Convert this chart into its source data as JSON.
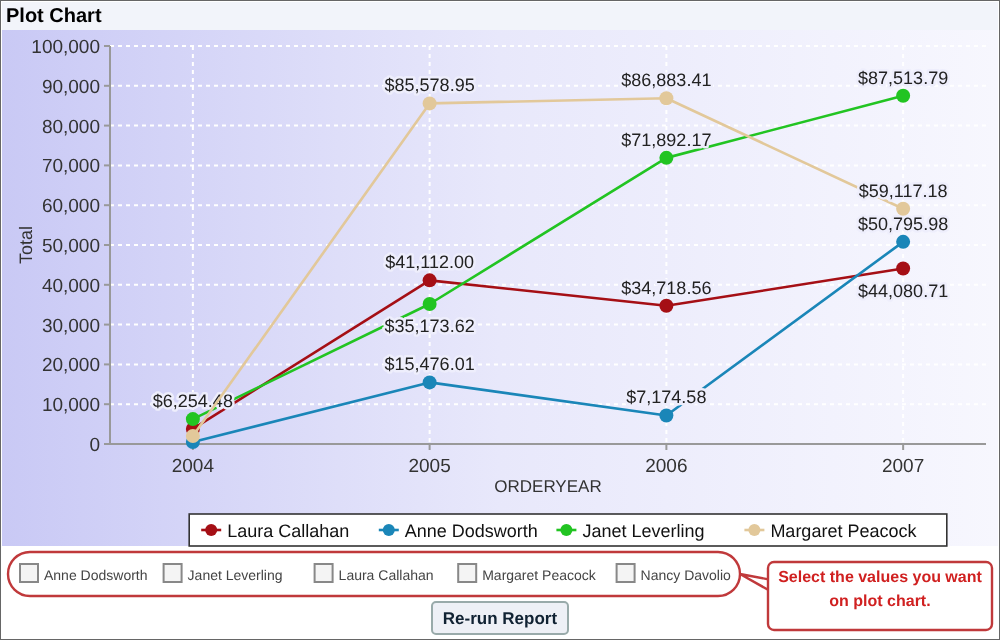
{
  "chart_data": {
    "type": "line",
    "title": "Plot Chart",
    "xlabel": "ORDERYEAR",
    "ylabel": "Total",
    "categories": [
      "2004",
      "2005",
      "2006",
      "2007"
    ],
    "series": [
      {
        "name": "Laura Callahan",
        "color": "#a50f15",
        "values": [
          3800,
          41112.0,
          34718.56,
          44080.71
        ],
        "value_labels": [
          null,
          "$41,112.00",
          "$34,718.56",
          "$44,080.71"
        ]
      },
      {
        "name": "Anne Dodsworth",
        "color": "#1a86b8",
        "values": [
          500,
          15476.01,
          7174.58,
          50795.98
        ],
        "value_labels": [
          null,
          "$15,476.01",
          "$7,174.58",
          "$50,795.98"
        ]
      },
      {
        "name": "Janet Leverling",
        "color": "#22c422",
        "values": [
          6254.48,
          35173.62,
          71892.17,
          87513.79
        ],
        "value_labels": [
          "$6,254.48",
          "$35,173.62",
          "$71,892.17",
          "$87,513.79"
        ]
      },
      {
        "name": "Margaret Peacock",
        "color": "#e2c89a",
        "values": [
          2000,
          85578.95,
          86883.41,
          59117.18
        ],
        "value_labels": [
          null,
          "$85,578.95",
          "$86,883.41",
          "$59,117.18"
        ]
      }
    ],
    "ylim": [
      0,
      100000
    ],
    "yticks": [
      {
        "value": 0,
        "label": "0"
      },
      {
        "value": 10000,
        "label": "10,000"
      },
      {
        "value": 20000,
        "label": "20,000"
      },
      {
        "value": 30000,
        "label": "30,000"
      },
      {
        "value": 40000,
        "label": "40,000"
      },
      {
        "value": 50000,
        "label": "50,000"
      },
      {
        "value": 60000,
        "label": "60,000"
      },
      {
        "value": 70000,
        "label": "70,000"
      },
      {
        "value": 80000,
        "label": "80,000"
      },
      {
        "value": 90000,
        "label": "90,000"
      },
      {
        "value": 100000,
        "label": "100,000"
      }
    ],
    "grid": true,
    "marker": "circle",
    "legend": "bottom",
    "annotations": [
      "Anne Dodsworth",
      "Janet Leverling",
      "Laura Callahan",
      "Margaret Peacock",
      "Nancy Davolio",
      "Re-run Report",
      "Select the values you want on plot chart."
    ]
  }
}
